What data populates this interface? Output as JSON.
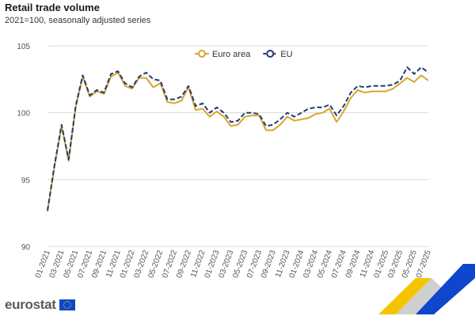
{
  "header": {
    "title": "Retail trade volume",
    "subtitle": "2021=100, seasonally adjusted series"
  },
  "branding": {
    "logo_text": "eurostat"
  },
  "colors": {
    "euro_area": "#d4a72c",
    "eu": "#243a74",
    "grid": "#d9d9d9",
    "logo_blue": "#0e47cb",
    "logo_yellow": "#f5c400"
  },
  "chart_data": {
    "type": "line",
    "title": "Retail trade volume",
    "subtitle": "2021=100, seasonally adjusted series",
    "xlabel": "",
    "ylabel": "",
    "ylim": [
      90,
      105
    ],
    "yticks": [
      90,
      95,
      100,
      105
    ],
    "grid": "horizontal",
    "legend": "top-center",
    "x": [
      "01-2021",
      "02-2021",
      "03-2021",
      "04-2021",
      "05-2021",
      "06-2021",
      "07-2021",
      "08-2021",
      "09-2021",
      "10-2021",
      "11-2021",
      "12-2021",
      "01-2022",
      "02-2022",
      "03-2022",
      "04-2022",
      "05-2022",
      "06-2022",
      "07-2022",
      "08-2022",
      "09-2022",
      "10-2022",
      "11-2022",
      "12-2022",
      "01-2023",
      "02-2023",
      "03-2023",
      "04-2023",
      "05-2023",
      "06-2023",
      "07-2023",
      "08-2023",
      "09-2023",
      "10-2023",
      "11-2023",
      "12-2023",
      "01-2024",
      "02-2024",
      "03-2024",
      "04-2024",
      "05-2024",
      "06-2024",
      "07-2024",
      "08-2024",
      "09-2024",
      "10-2024",
      "11-2024",
      "12-2024",
      "01-2025",
      "02-2025",
      "03-2025",
      "04-2025",
      "05-2025",
      "06-2025",
      "07-2025"
    ],
    "xticks": [
      "01-2021",
      "03-2021",
      "05-2021",
      "07-2021",
      "09-2021",
      "11-2021",
      "01-2022",
      "03-2022",
      "05-2022",
      "07-2022",
      "09-2022",
      "11-2022",
      "01-2023",
      "03-2023",
      "05-2023",
      "07-2023",
      "09-2023",
      "11-2023",
      "01-2024",
      "03-2024",
      "05-2024",
      "07-2024",
      "09-2024",
      "11-2024",
      "01-2025",
      "03-2025",
      "05-2025",
      "07-2025"
    ],
    "series": [
      {
        "name": "Euro area",
        "style": "solid",
        "values": [
          92.6,
          96.0,
          99.0,
          96.4,
          100.4,
          102.7,
          101.2,
          101.6,
          101.4,
          102.7,
          103.0,
          102.0,
          101.8,
          102.6,
          102.6,
          101.9,
          102.2,
          100.8,
          100.7,
          100.9,
          101.9,
          100.2,
          100.3,
          99.7,
          100.1,
          99.7,
          99.0,
          99.1,
          99.7,
          99.8,
          99.8,
          98.7,
          98.7,
          99.1,
          99.7,
          99.4,
          99.5,
          99.6,
          99.9,
          100.0,
          100.3,
          99.3,
          100.1,
          101.1,
          101.7,
          101.5,
          101.6,
          101.6,
          101.6,
          101.8,
          102.2,
          102.6,
          102.3,
          102.8,
          102.4
        ]
      },
      {
        "name": "EU",
        "style": "dashed",
        "values": [
          92.7,
          96.1,
          99.1,
          96.5,
          100.5,
          102.8,
          101.3,
          101.7,
          101.5,
          102.9,
          103.1,
          102.2,
          101.9,
          102.7,
          103.0,
          102.5,
          102.4,
          101.0,
          101.0,
          101.2,
          102.0,
          100.5,
          100.7,
          100.0,
          100.4,
          100.0,
          99.3,
          99.4,
          100.0,
          100.0,
          99.9,
          99.0,
          99.1,
          99.5,
          100.0,
          99.7,
          100.0,
          100.3,
          100.4,
          100.4,
          100.6,
          99.8,
          100.5,
          101.5,
          102.0,
          101.9,
          102.0,
          102.0,
          102.0,
          102.1,
          102.4,
          103.4,
          102.9,
          103.4,
          103.0
        ]
      }
    ]
  }
}
